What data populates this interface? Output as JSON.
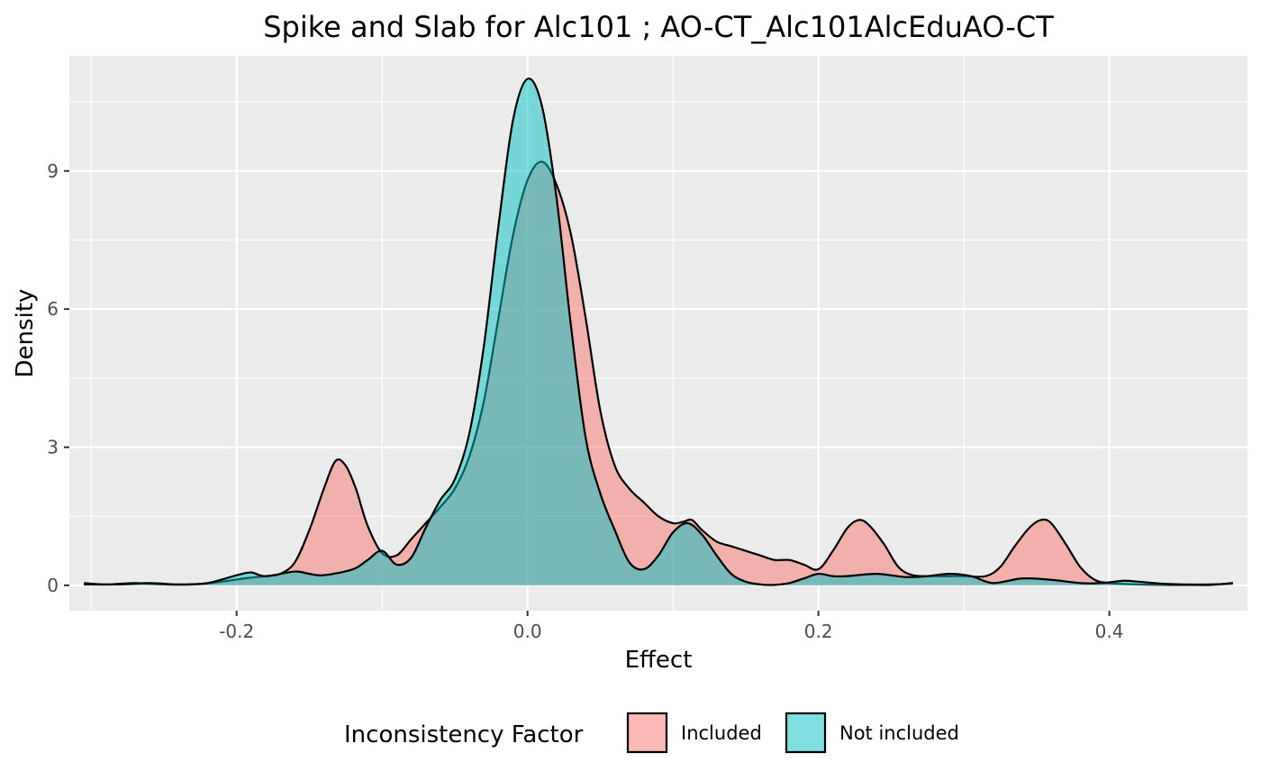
{
  "chart_data": {
    "type": "area",
    "title": "Spike and Slab for Alc101 ; AO-CT_Alc101AlcEduAO-CT",
    "xlabel": "Effect",
    "ylabel": "Density",
    "xlim": [
      -0.315,
      0.495
    ],
    "ylim": [
      -0.55,
      11.5
    ],
    "x_ticks": [
      -0.3,
      -0.2,
      -0.1,
      0.0,
      0.1,
      0.2,
      0.3,
      0.4,
      0.5
    ],
    "x_tick_labels": [
      "-0.2",
      "0.0",
      "0.2",
      "0.4"
    ],
    "x_tick_label_values": [
      -0.2,
      0.0,
      0.2,
      0.4
    ],
    "y_ticks": [
      0,
      1.5,
      3,
      4.5,
      6,
      7.5,
      9,
      10.5
    ],
    "y_tick_labels": [
      "0",
      "3",
      "6",
      "9"
    ],
    "y_tick_label_values": [
      0,
      3,
      6,
      9
    ],
    "grid": true,
    "legend_position": "bottom",
    "legend_title": "Inconsistency Factor",
    "series": [
      {
        "name": "Included",
        "color": "#F8766D",
        "points": [
          [
            -0.305,
            0.05
          ],
          [
            -0.29,
            0.02
          ],
          [
            -0.27,
            0.05
          ],
          [
            -0.25,
            0.02
          ],
          [
            -0.23,
            0.02
          ],
          [
            -0.21,
            0.08
          ],
          [
            -0.195,
            0.15
          ],
          [
            -0.18,
            0.2
          ],
          [
            -0.17,
            0.25
          ],
          [
            -0.16,
            0.5
          ],
          [
            -0.15,
            1.2
          ],
          [
            -0.14,
            2.1
          ],
          [
            -0.132,
            2.7
          ],
          [
            -0.125,
            2.6
          ],
          [
            -0.118,
            2.1
          ],
          [
            -0.11,
            1.3
          ],
          [
            -0.1,
            0.7
          ],
          [
            -0.09,
            0.65
          ],
          [
            -0.08,
            1.0
          ],
          [
            -0.07,
            1.35
          ],
          [
            -0.06,
            1.7
          ],
          [
            -0.05,
            2.1
          ],
          [
            -0.04,
            2.8
          ],
          [
            -0.03,
            4.0
          ],
          [
            -0.02,
            5.8
          ],
          [
            -0.01,
            7.6
          ],
          [
            0.0,
            8.8
          ],
          [
            0.01,
            9.2
          ],
          [
            0.02,
            8.7
          ],
          [
            0.03,
            7.6
          ],
          [
            0.04,
            5.8
          ],
          [
            0.05,
            3.8
          ],
          [
            0.06,
            2.6
          ],
          [
            0.07,
            2.1
          ],
          [
            0.08,
            1.8
          ],
          [
            0.09,
            1.5
          ],
          [
            0.1,
            1.35
          ],
          [
            0.107,
            1.38
          ],
          [
            0.113,
            1.42
          ],
          [
            0.12,
            1.2
          ],
          [
            0.13,
            0.95
          ],
          [
            0.14,
            0.85
          ],
          [
            0.15,
            0.75
          ],
          [
            0.16,
            0.65
          ],
          [
            0.17,
            0.55
          ],
          [
            0.18,
            0.55
          ],
          [
            0.19,
            0.45
          ],
          [
            0.2,
            0.35
          ],
          [
            0.21,
            0.75
          ],
          [
            0.22,
            1.25
          ],
          [
            0.228,
            1.42
          ],
          [
            0.235,
            1.3
          ],
          [
            0.245,
            0.9
          ],
          [
            0.255,
            0.4
          ],
          [
            0.265,
            0.22
          ],
          [
            0.28,
            0.2
          ],
          [
            0.3,
            0.2
          ],
          [
            0.315,
            0.2
          ],
          [
            0.325,
            0.4
          ],
          [
            0.335,
            0.85
          ],
          [
            0.345,
            1.25
          ],
          [
            0.353,
            1.42
          ],
          [
            0.36,
            1.35
          ],
          [
            0.37,
            0.9
          ],
          [
            0.38,
            0.4
          ],
          [
            0.39,
            0.12
          ],
          [
            0.4,
            0.05
          ],
          [
            0.42,
            0.02
          ],
          [
            0.45,
            0.01
          ],
          [
            0.47,
            0.01
          ],
          [
            0.485,
            0.05
          ]
        ]
      },
      {
        "name": "Not included",
        "color": "#00BFC4",
        "points": [
          [
            -0.305,
            0.02
          ],
          [
            -0.28,
            0.02
          ],
          [
            -0.26,
            0.05
          ],
          [
            -0.24,
            0.02
          ],
          [
            -0.22,
            0.05
          ],
          [
            -0.2,
            0.22
          ],
          [
            -0.19,
            0.28
          ],
          [
            -0.18,
            0.2
          ],
          [
            -0.16,
            0.3
          ],
          [
            -0.15,
            0.25
          ],
          [
            -0.14,
            0.22
          ],
          [
            -0.12,
            0.35
          ],
          [
            -0.11,
            0.55
          ],
          [
            -0.1,
            0.75
          ],
          [
            -0.09,
            0.45
          ],
          [
            -0.08,
            0.6
          ],
          [
            -0.07,
            1.25
          ],
          [
            -0.06,
            1.85
          ],
          [
            -0.05,
            2.3
          ],
          [
            -0.04,
            3.3
          ],
          [
            -0.03,
            5.2
          ],
          [
            -0.02,
            7.8
          ],
          [
            -0.01,
            10.1
          ],
          [
            0.0,
            11.0
          ],
          [
            0.01,
            10.4
          ],
          [
            0.02,
            8.4
          ],
          [
            0.03,
            5.6
          ],
          [
            0.04,
            3.2
          ],
          [
            0.05,
            2.0
          ],
          [
            0.06,
            1.2
          ],
          [
            0.07,
            0.5
          ],
          [
            0.08,
            0.35
          ],
          [
            0.09,
            0.65
          ],
          [
            0.1,
            1.15
          ],
          [
            0.11,
            1.35
          ],
          [
            0.12,
            1.1
          ],
          [
            0.13,
            0.65
          ],
          [
            0.14,
            0.25
          ],
          [
            0.15,
            0.08
          ],
          [
            0.16,
            0.02
          ],
          [
            0.17,
            0.01
          ],
          [
            0.18,
            0.05
          ],
          [
            0.19,
            0.15
          ],
          [
            0.2,
            0.25
          ],
          [
            0.21,
            0.2
          ],
          [
            0.22,
            0.2
          ],
          [
            0.24,
            0.25
          ],
          [
            0.26,
            0.18
          ],
          [
            0.275,
            0.2
          ],
          [
            0.29,
            0.25
          ],
          [
            0.305,
            0.2
          ],
          [
            0.32,
            0.05
          ],
          [
            0.34,
            0.15
          ],
          [
            0.36,
            0.12
          ],
          [
            0.38,
            0.05
          ],
          [
            0.395,
            0.05
          ],
          [
            0.41,
            0.1
          ],
          [
            0.42,
            0.08
          ],
          [
            0.44,
            0.03
          ],
          [
            0.47,
            0.02
          ],
          [
            0.485,
            0.05
          ]
        ]
      }
    ]
  }
}
